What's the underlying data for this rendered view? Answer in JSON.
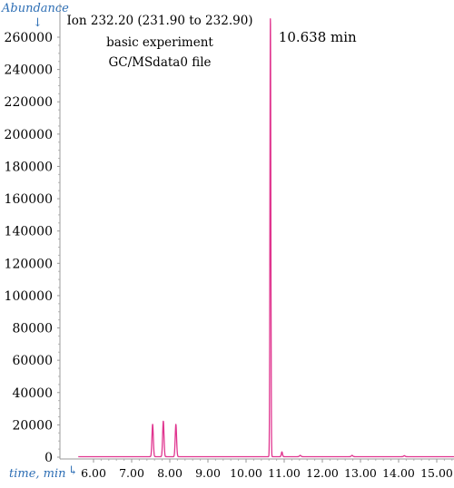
{
  "chart_data": {
    "type": "line",
    "ylabel": "Abundance",
    "xlabel": "time, min",
    "xlim": [
      5.6,
      15.55
    ],
    "ylim": [
      0,
      272000
    ],
    "x_ticks": [
      6.0,
      7.0,
      8.0,
      9.0,
      10.0,
      11.0,
      12.0,
      13.0,
      14.0,
      15.0
    ],
    "x_tick_labels": [
      "6.00",
      "7.00",
      "8.00",
      "9.00",
      "10.00",
      "11.00",
      "12.00",
      "13.00",
      "14.00",
      "15.00"
    ],
    "y_ticks": [
      0,
      20000,
      40000,
      60000,
      80000,
      100000,
      120000,
      140000,
      160000,
      180000,
      200000,
      220000,
      240000,
      260000
    ],
    "y_tick_labels": [
      "0",
      "20000",
      "40000",
      "60000",
      "80000",
      "100000",
      "120000",
      "140000",
      "160000",
      "180000",
      "200000",
      "220000",
      "240000",
      "260000"
    ],
    "annotation_lines": [
      "Ion 232.20 (231.90 to 232.90)",
      "basic experiment",
      "GC/MSdata0 file"
    ],
    "peak_label": "10.638 min",
    "peak_label_x": 10.638,
    "grid": false,
    "line_color": "#e0358f",
    "axis_label_color": "#2e6fb5",
    "peaks": [
      {
        "rt": 7.55,
        "height": 20000,
        "width": 0.018
      },
      {
        "rt": 7.83,
        "height": 22000,
        "width": 0.018
      },
      {
        "rt": 8.16,
        "height": 20000,
        "width": 0.018
      },
      {
        "rt": 10.638,
        "height": 272000,
        "width": 0.012
      },
      {
        "rt": 10.94,
        "height": 3000,
        "width": 0.015
      },
      {
        "rt": 11.42,
        "height": 800,
        "width": 0.02
      },
      {
        "rt": 12.78,
        "height": 800,
        "width": 0.02
      },
      {
        "rt": 14.15,
        "height": 600,
        "width": 0.02
      }
    ],
    "baseline": 300
  }
}
